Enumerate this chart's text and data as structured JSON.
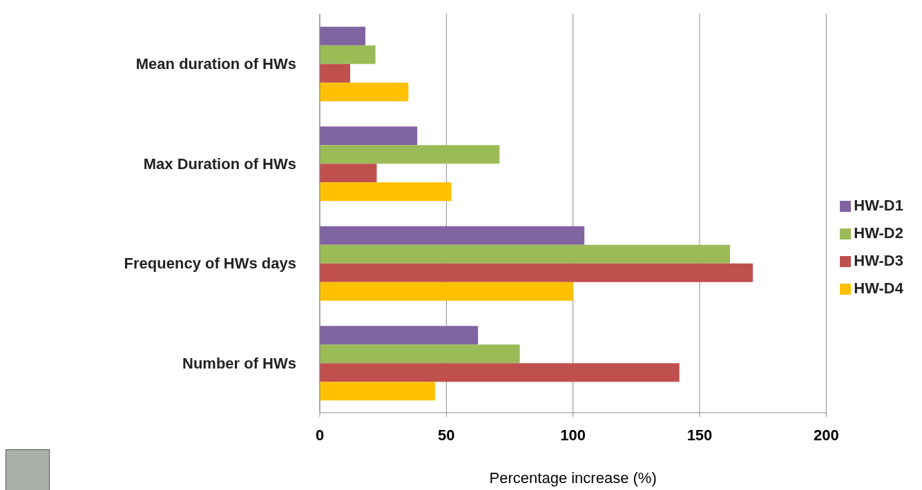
{
  "chart_data": {
    "type": "bar",
    "orientation": "horizontal",
    "xlabel": "Percentage increase (%)",
    "categories": [
      "Mean duration of HWs",
      "Max Duration of HWs",
      "Frequency of HWs days",
      "Number of HWs"
    ],
    "series": [
      {
        "name": "HW-D1",
        "color": "#8064a2",
        "values": [
          18,
          38.5,
          104.5,
          62.5
        ]
      },
      {
        "name": "HW-D2",
        "color": "#9bbb59",
        "values": [
          22,
          71,
          162,
          79
        ]
      },
      {
        "name": "HW-D3",
        "color": "#c0504d",
        "values": [
          12,
          22.5,
          171,
          142
        ]
      },
      {
        "name": "HW-D4",
        "color": "#ffc000",
        "values": [
          35,
          52,
          100,
          45.5
        ]
      }
    ],
    "xlim": [
      0,
      200
    ],
    "xticks": [
      0,
      50,
      100,
      150,
      200
    ],
    "grid": "x",
    "legend": "right"
  }
}
